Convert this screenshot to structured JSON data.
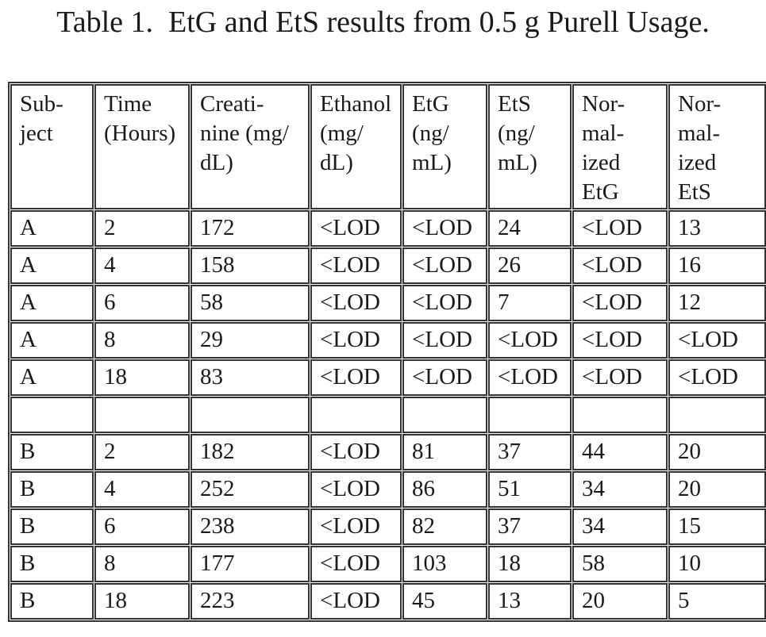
{
  "page": {
    "title": "Table 1.  EtG and EtS results from 0.5 g Purell Usage."
  },
  "table": {
    "columns": [
      "Sub-\nject",
      "Time\n(Hours)",
      "Creati-\nnine (mg/\ndL)",
      "Ethanol\n(mg/\ndL)",
      "EtG\n(ng/\nmL)",
      "EtS\n(ng/\nmL)",
      "Nor-\nmal-\nized\nEtG",
      "Nor-\nmal-\nized\nEtS"
    ],
    "rows": [
      [
        "A",
        "2",
        "172",
        "<LOD",
        "<LOD",
        "24",
        "<LOD",
        "13"
      ],
      [
        "A",
        "4",
        "158",
        "<LOD",
        "<LOD",
        "26",
        "<LOD",
        "16"
      ],
      [
        "A",
        "6",
        "58",
        "<LOD",
        "<LOD",
        "7",
        "<LOD",
        "12"
      ],
      [
        "A",
        "8",
        "29",
        "<LOD",
        "<LOD",
        "<LOD",
        "<LOD",
        "<LOD"
      ],
      [
        "A",
        "18",
        "83",
        "<LOD",
        "<LOD",
        "<LOD",
        "<LOD",
        "<LOD"
      ],
      [
        "",
        "",
        "",
        "",
        "",
        "",
        "",
        ""
      ],
      [
        "B",
        "2",
        "182",
        "<LOD",
        "81",
        "37",
        "44",
        "20"
      ],
      [
        "B",
        "4",
        "252",
        "<LOD",
        "86",
        "51",
        "34",
        "20"
      ],
      [
        "B",
        "6",
        "238",
        "<LOD",
        "82",
        "37",
        "34",
        "15"
      ],
      [
        "B",
        "8",
        "177",
        "<LOD",
        "103",
        "18",
        "58",
        "10"
      ],
      [
        "B",
        "18",
        "223",
        "<LOD",
        "45",
        "13",
        "20",
        "5"
      ]
    ]
  },
  "colors": {
    "text": "#1a1a1a",
    "border": "#333333",
    "background": "#ffffff"
  }
}
